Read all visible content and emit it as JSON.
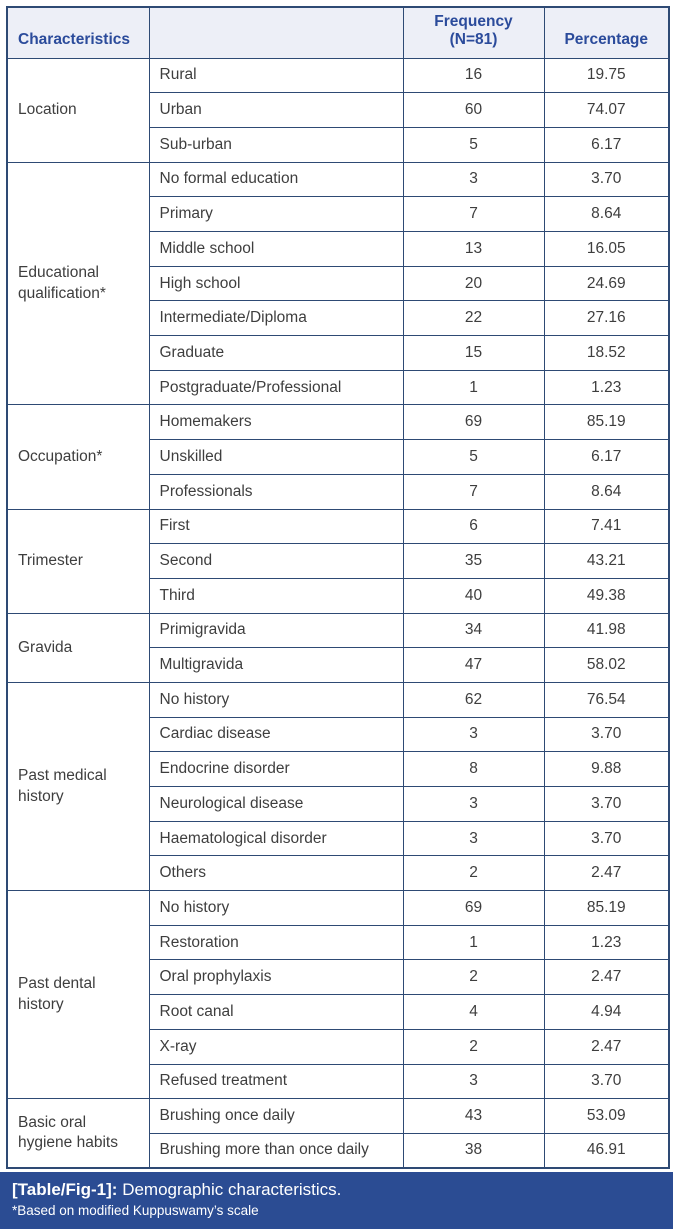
{
  "table": {
    "headers": {
      "characteristics": "Characteristics",
      "sub": "",
      "frequency_line1": "Frequency",
      "frequency_line2": "(N=81)",
      "percentage": "Percentage"
    },
    "groups": [
      {
        "label": "Location",
        "rows": [
          [
            "Rural",
            "16",
            "19.75"
          ],
          [
            "Urban",
            "60",
            "74.07"
          ],
          [
            "Sub-urban",
            "5",
            "6.17"
          ]
        ]
      },
      {
        "label": "Educational qualification*",
        "rows": [
          [
            "No formal education",
            "3",
            "3.70"
          ],
          [
            "Primary",
            "7",
            "8.64"
          ],
          [
            "Middle school",
            "13",
            "16.05"
          ],
          [
            "High school",
            "20",
            "24.69"
          ],
          [
            "Intermediate/Diploma",
            "22",
            "27.16"
          ],
          [
            "Graduate",
            "15",
            "18.52"
          ],
          [
            "Postgraduate/Professional",
            "1",
            "1.23"
          ]
        ]
      },
      {
        "label": "Occupation*",
        "rows": [
          [
            "Homemakers",
            "69",
            "85.19"
          ],
          [
            "Unskilled",
            "5",
            "6.17"
          ],
          [
            "Professionals",
            "7",
            "8.64"
          ]
        ]
      },
      {
        "label": "Trimester",
        "rows": [
          [
            "First",
            "6",
            "7.41"
          ],
          [
            "Second",
            "35",
            "43.21"
          ],
          [
            "Third",
            "40",
            "49.38"
          ]
        ]
      },
      {
        "label": "Gravida",
        "rows": [
          [
            "Primigravida",
            "34",
            "41.98"
          ],
          [
            "Multigravida",
            "47",
            "58.02"
          ]
        ]
      },
      {
        "label": "Past medical history",
        "rows": [
          [
            "No history",
            "62",
            "76.54"
          ],
          [
            "Cardiac disease",
            "3",
            "3.70"
          ],
          [
            "Endocrine disorder",
            "8",
            "9.88"
          ],
          [
            "Neurological disease",
            "3",
            "3.70"
          ],
          [
            "Haematological disorder",
            "3",
            "3.70"
          ],
          [
            "Others",
            "2",
            "2.47"
          ]
        ]
      },
      {
        "label": "Past dental history",
        "rows": [
          [
            "No history",
            "69",
            "85.19"
          ],
          [
            "Restoration",
            "1",
            "1.23"
          ],
          [
            "Oral prophylaxis",
            "2",
            "2.47"
          ],
          [
            "Root canal",
            "4",
            "4.94"
          ],
          [
            "X-ray",
            "2",
            "2.47"
          ],
          [
            "Refused treatment",
            "3",
            "3.70"
          ]
        ]
      },
      {
        "label": "Basic oral hygiene habits",
        "rows": [
          [
            "Brushing once daily",
            "43",
            "53.09"
          ],
          [
            "Brushing more than once daily",
            "38",
            "46.91"
          ]
        ]
      }
    ]
  },
  "caption": {
    "tag": "[Table/Fig-1]:",
    "text": "Demographic characteristics.",
    "footnote": "*Based on modified Kuppuswamy’s scale"
  },
  "colors": {
    "header_bg": "#edeff7",
    "header_text": "#2b4b9b",
    "border": "#2e4a74",
    "body_text": "#3e3e3e",
    "caption_bg": "#2b4c93",
    "caption_text": "#ffffff"
  },
  "chart_data": {
    "type": "table",
    "title": "[Table/Fig-1]: Demographic characteristics.",
    "footnote": "*Based on modified Kuppuswamy's scale",
    "columns": [
      "Characteristics",
      "",
      "Frequency (N=81)",
      "Percentage"
    ],
    "rows": [
      [
        "Location",
        "Rural",
        16,
        "19.75"
      ],
      [
        "Location",
        "Urban",
        60,
        "74.07"
      ],
      [
        "Location",
        "Sub-urban",
        5,
        "6.17"
      ],
      [
        "Educational qualification*",
        "No formal education",
        3,
        "3.70"
      ],
      [
        "Educational qualification*",
        "Primary",
        7,
        "8.64"
      ],
      [
        "Educational qualification*",
        "Middle school",
        13,
        "16.05"
      ],
      [
        "Educational qualification*",
        "High school",
        20,
        "24.69"
      ],
      [
        "Educational qualification*",
        "Intermediate/Diploma",
        22,
        "27.16"
      ],
      [
        "Educational qualification*",
        "Graduate",
        15,
        "18.52"
      ],
      [
        "Educational qualification*",
        "Postgraduate/Professional",
        1,
        "1.23"
      ],
      [
        "Occupation*",
        "Homemakers",
        69,
        "85.19"
      ],
      [
        "Occupation*",
        "Unskilled",
        5,
        "6.17"
      ],
      [
        "Occupation*",
        "Professionals",
        7,
        "8.64"
      ],
      [
        "Trimester",
        "First",
        6,
        "7.41"
      ],
      [
        "Trimester",
        "Second",
        35,
        "43.21"
      ],
      [
        "Trimester",
        "Third",
        40,
        "49.38"
      ],
      [
        "Gravida",
        "Primigravida",
        34,
        "41.98"
      ],
      [
        "Gravida",
        "Multigravida",
        47,
        "58.02"
      ],
      [
        "Past medical history",
        "No history",
        62,
        "76.54"
      ],
      [
        "Past medical history",
        "Cardiac disease",
        3,
        "3.70"
      ],
      [
        "Past medical history",
        "Endocrine disorder",
        8,
        "9.88"
      ],
      [
        "Past medical history",
        "Neurological disease",
        3,
        "3.70"
      ],
      [
        "Past medical history",
        "Haematological disorder",
        3,
        "3.70"
      ],
      [
        "Past medical history",
        "Others",
        2,
        "2.47"
      ],
      [
        "Past dental history",
        "No history",
        69,
        "85.19"
      ],
      [
        "Past dental history",
        "Restoration",
        1,
        "1.23"
      ],
      [
        "Past dental history",
        "Oral prophylaxis",
        2,
        "2.47"
      ],
      [
        "Past dental history",
        "Root canal",
        4,
        "4.94"
      ],
      [
        "Past dental history",
        "X-ray",
        2,
        "2.47"
      ],
      [
        "Past dental history",
        "Refused treatment",
        3,
        "3.70"
      ],
      [
        "Basic oral hygiene habits",
        "Brushing once daily",
        43,
        "53.09"
      ],
      [
        "Basic oral hygiene habits",
        "Brushing more than once daily",
        38,
        "46.91"
      ]
    ]
  }
}
